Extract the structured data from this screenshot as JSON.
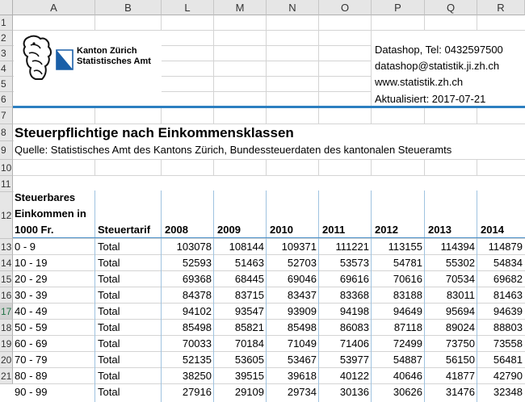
{
  "columns": [
    "A",
    "B",
    "L",
    "M",
    "N",
    "O",
    "P",
    "Q",
    "R"
  ],
  "rows": [
    "1",
    "2",
    "3",
    "4",
    "5",
    "6",
    "7",
    "8",
    "9",
    "10",
    "11",
    "12",
    "13",
    "14",
    "15",
    "16",
    "17",
    "18",
    "19",
    "20",
    "21"
  ],
  "logo": {
    "line1": "Kanton Zürich",
    "line2": "Statistisches Amt"
  },
  "contact": {
    "phone": "Datashop, Tel: 0432597500",
    "email": "datashop@statistik.ji.zh.ch",
    "web": "www.statistik.zh.ch",
    "updated": "Aktualisiert: 2017-07-21"
  },
  "title": "Steuerpflichtige nach Einkommensklassen",
  "source": "Quelle: Statistisches Amt des Kantons Zürich, Bundessteuerdaten des kantonalen Steueramts",
  "table": {
    "header_a": [
      "Steuerbares",
      "Einkommen in",
      "1000 Fr."
    ],
    "header_b": "Steuertarif",
    "years": [
      "2008",
      "2009",
      "2010",
      "2011",
      "2012",
      "2013",
      "2014"
    ],
    "rows": [
      {
        "range": "0 - 9",
        "tarif": "Total",
        "values": [
          "103078",
          "108144",
          "109371",
          "111221",
          "113155",
          "114394",
          "114879"
        ]
      },
      {
        "range": "10 - 19",
        "tarif": "Total",
        "values": [
          "52593",
          "51463",
          "52703",
          "53573",
          "54781",
          "55302",
          "54834"
        ]
      },
      {
        "range": "20 - 29",
        "tarif": "Total",
        "values": [
          "69368",
          "68445",
          "69046",
          "69616",
          "70616",
          "70534",
          "69682"
        ]
      },
      {
        "range": "30 - 39",
        "tarif": "Total",
        "values": [
          "84378",
          "83715",
          "83437",
          "83368",
          "83188",
          "83011",
          "81463"
        ]
      },
      {
        "range": "40 - 49",
        "tarif": "Total",
        "values": [
          "94102",
          "93547",
          "93909",
          "94198",
          "94649",
          "95694",
          "94639"
        ]
      },
      {
        "range": "50 - 59",
        "tarif": "Total",
        "values": [
          "85498",
          "85821",
          "85498",
          "86083",
          "87118",
          "89024",
          "88803"
        ]
      },
      {
        "range": "60 - 69",
        "tarif": "Total",
        "values": [
          "70033",
          "70184",
          "71049",
          "71406",
          "72499",
          "73750",
          "73558"
        ]
      },
      {
        "range": "70 - 79",
        "tarif": "Total",
        "values": [
          "52135",
          "53605",
          "53467",
          "53977",
          "54887",
          "56150",
          "56481"
        ]
      },
      {
        "range": "80 - 89",
        "tarif": "Total",
        "values": [
          "38250",
          "39515",
          "39618",
          "40122",
          "40646",
          "41877",
          "42790"
        ]
      },
      {
        "range": "90 - 99",
        "tarif": "Total",
        "values": [
          "27916",
          "29109",
          "29734",
          "30136",
          "30626",
          "31476",
          "32348"
        ]
      }
    ]
  }
}
